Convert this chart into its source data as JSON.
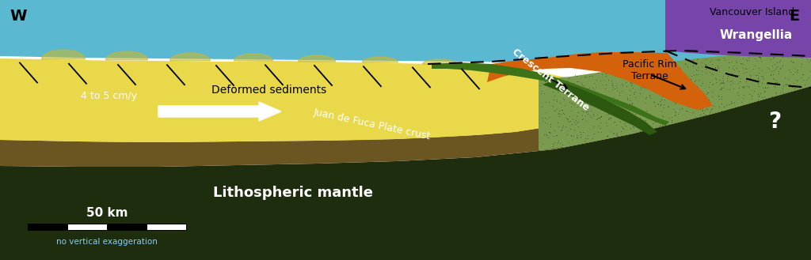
{
  "fig_width": 10.24,
  "fig_height": 3.29,
  "dpi": 100,
  "white_bg": "#ffffff",
  "mantle_color": "#1e2d0e",
  "ocean_color": "#5ab8d0",
  "sediment_color": "#e8d84a",
  "crescent_color": "#3d7318",
  "crescent2_color": "#2d5810",
  "pacific_rim_color": "#d4620a",
  "wrangellia_color": "#7744aa",
  "jdf_crust_color": "#6b5520",
  "jdf_crust_dark": "#4a3d18",
  "continental_color": "#7a9a50",
  "W_label": "W",
  "E_label": "E",
  "vancouver_label": "Vancouver Island",
  "scale_label": "50 km",
  "scale_sublabel": "no vertical exaggeration"
}
